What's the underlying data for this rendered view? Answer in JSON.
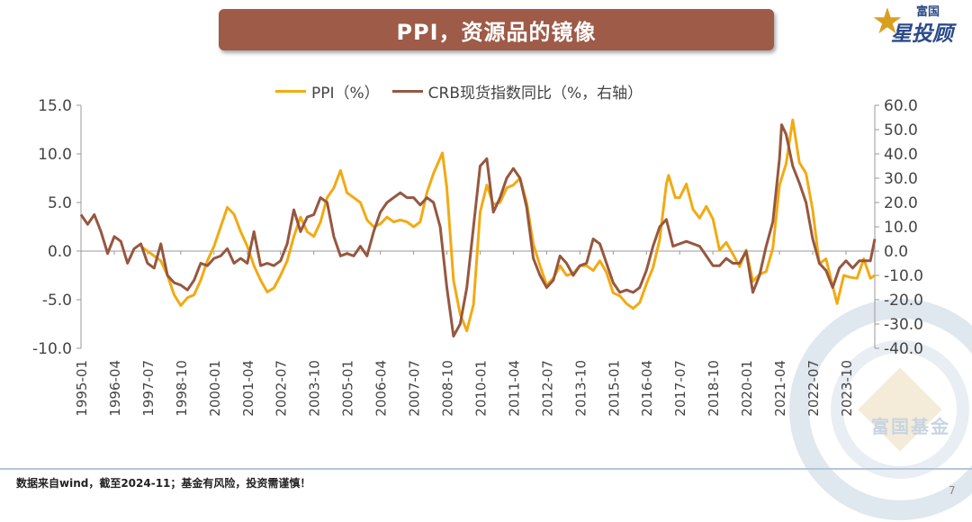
{
  "header": {
    "title": "PPI，资源品的镜像",
    "logo_small": "富国",
    "logo_big": "星投顾"
  },
  "watermark": {
    "text": "富国基金"
  },
  "footer": {
    "note": "数据来自wind，截至2024-11；基金有风险，投资需谨慎！",
    "page_number": "7"
  },
  "colors": {
    "banner": "#9e5b48",
    "ppi": "#f2aa12",
    "crb": "#96573f",
    "footer_rule": "#b6c6d9"
  },
  "chart_data": {
    "type": "line",
    "title": "",
    "legend_position": "top",
    "grid": false,
    "x_range": [
      "1995-01",
      "2024-11"
    ],
    "x_ticks": [
      "1995-01",
      "1996-04",
      "1997-07",
      "1998-10",
      "2000-01",
      "2001-04",
      "2002-07",
      "2003-10",
      "2005-01",
      "2006-04",
      "2007-07",
      "2008-10",
      "2010-01",
      "2011-04",
      "2012-07",
      "2013-10",
      "2015-01",
      "2016-04",
      "2017-07",
      "2018-10",
      "2020-01",
      "2021-04",
      "2022-07",
      "2023-10"
    ],
    "y_left": {
      "ticks": [
        "15.0",
        "10.0",
        "5.0",
        "0.0",
        "-5.0",
        "-10.0"
      ],
      "range": [
        -10,
        15
      ]
    },
    "y_right": {
      "ticks": [
        "60.0",
        "50.0",
        "40.0",
        "30.0",
        "20.0",
        "10.0",
        "0.0",
        "-10.0",
        "-20.0",
        "-30.0",
        "-40.0"
      ],
      "range": [
        -40,
        60
      ]
    },
    "series": [
      {
        "name": "PPI（%）",
        "axis": "left",
        "points": [
          [
            "1997-04",
            0.5
          ],
          [
            "1997-10",
            -0.5
          ],
          [
            "1998-01",
            -1.0
          ],
          [
            "1998-04",
            -2.5
          ],
          [
            "1998-07",
            -4.5
          ],
          [
            "1998-10",
            -5.6
          ],
          [
            "1999-01",
            -4.8
          ],
          [
            "1999-04",
            -4.5
          ],
          [
            "1999-07",
            -3.0
          ],
          [
            "1999-10",
            -1.0
          ],
          [
            "2000-01",
            0.5
          ],
          [
            "2000-04",
            2.5
          ],
          [
            "2000-07",
            4.5
          ],
          [
            "2000-10",
            3.8
          ],
          [
            "2001-01",
            2.0
          ],
          [
            "2001-04",
            0.5
          ],
          [
            "2001-07",
            -1.5
          ],
          [
            "2001-10",
            -3.0
          ],
          [
            "2002-01",
            -4.2
          ],
          [
            "2002-04",
            -3.8
          ],
          [
            "2002-07",
            -2.5
          ],
          [
            "2002-10",
            -1.0
          ],
          [
            "2003-01",
            1.5
          ],
          [
            "2003-04",
            3.5
          ],
          [
            "2003-07",
            2.0
          ],
          [
            "2003-10",
            1.5
          ],
          [
            "2004-01",
            3.0
          ],
          [
            "2004-04",
            5.5
          ],
          [
            "2004-07",
            6.5
          ],
          [
            "2004-10",
            8.3
          ],
          [
            "2005-01",
            6.0
          ],
          [
            "2005-04",
            5.5
          ],
          [
            "2005-07",
            5.0
          ],
          [
            "2005-10",
            3.2
          ],
          [
            "2006-01",
            2.5
          ],
          [
            "2006-04",
            2.8
          ],
          [
            "2006-07",
            3.5
          ],
          [
            "2006-10",
            3.0
          ],
          [
            "2007-01",
            3.2
          ],
          [
            "2007-04",
            3.0
          ],
          [
            "2007-07",
            2.5
          ],
          [
            "2007-10",
            3.0
          ],
          [
            "2008-01",
            6.0
          ],
          [
            "2008-04",
            8.0
          ],
          [
            "2008-08",
            10.1
          ],
          [
            "2008-10",
            6.5
          ],
          [
            "2009-01",
            -3.0
          ],
          [
            "2009-04",
            -6.5
          ],
          [
            "2009-07",
            -8.2
          ],
          [
            "2009-10",
            -5.5
          ],
          [
            "2010-01",
            4.0
          ],
          [
            "2010-04",
            6.8
          ],
          [
            "2010-07",
            4.8
          ],
          [
            "2010-10",
            5.0
          ],
          [
            "2011-01",
            6.5
          ],
          [
            "2011-04",
            6.8
          ],
          [
            "2011-07",
            7.5
          ],
          [
            "2011-10",
            5.0
          ],
          [
            "2012-01",
            0.7
          ],
          [
            "2012-04",
            -1.5
          ],
          [
            "2012-07",
            -3.5
          ],
          [
            "2012-10",
            -2.8
          ],
          [
            "2013-01",
            -1.5
          ],
          [
            "2013-04",
            -2.5
          ],
          [
            "2013-07",
            -2.3
          ],
          [
            "2013-10",
            -1.5
          ],
          [
            "2014-01",
            -1.5
          ],
          [
            "2014-04",
            -2.0
          ],
          [
            "2014-07",
            -1.0
          ],
          [
            "2014-10",
            -2.2
          ],
          [
            "2015-01",
            -4.3
          ],
          [
            "2015-04",
            -4.6
          ],
          [
            "2015-07",
            -5.4
          ],
          [
            "2015-10",
            -5.9
          ],
          [
            "2016-01",
            -5.3
          ],
          [
            "2016-04",
            -3.4
          ],
          [
            "2016-07",
            -1.7
          ],
          [
            "2016-10",
            1.2
          ],
          [
            "2017-01",
            6.9
          ],
          [
            "2017-02",
            7.8
          ],
          [
            "2017-05",
            5.5
          ],
          [
            "2017-07",
            5.5
          ],
          [
            "2017-10",
            6.9
          ],
          [
            "2018-01",
            4.3
          ],
          [
            "2018-04",
            3.4
          ],
          [
            "2018-07",
            4.6
          ],
          [
            "2018-10",
            3.3
          ],
          [
            "2019-01",
            0.1
          ],
          [
            "2019-04",
            0.9
          ],
          [
            "2019-07",
            -0.3
          ],
          [
            "2019-10",
            -1.6
          ],
          [
            "2020-01",
            0.1
          ],
          [
            "2020-04",
            -3.1
          ],
          [
            "2020-07",
            -2.4
          ],
          [
            "2020-10",
            -2.1
          ],
          [
            "2021-01",
            0.3
          ],
          [
            "2021-04",
            6.8
          ],
          [
            "2021-07",
            9.0
          ],
          [
            "2021-10",
            13.5
          ],
          [
            "2022-01",
            9.1
          ],
          [
            "2022-04",
            8.0
          ],
          [
            "2022-07",
            4.2
          ],
          [
            "2022-10",
            -1.3
          ],
          [
            "2023-01",
            -0.8
          ],
          [
            "2023-04",
            -3.6
          ],
          [
            "2023-06",
            -5.4
          ],
          [
            "2023-09",
            -2.5
          ],
          [
            "2023-12",
            -2.7
          ],
          [
            "2024-03",
            -2.8
          ],
          [
            "2024-06",
            -0.8
          ],
          [
            "2024-09",
            -2.8
          ],
          [
            "2024-11",
            -2.5
          ]
        ]
      },
      {
        "name": "CRB现货指数同比（%，右轴）",
        "axis": "right",
        "points": [
          [
            "1995-01",
            15
          ],
          [
            "1995-04",
            11
          ],
          [
            "1995-07",
            15
          ],
          [
            "1995-10",
            8
          ],
          [
            "1996-01",
            -1
          ],
          [
            "1996-04",
            6
          ],
          [
            "1996-07",
            4
          ],
          [
            "1996-10",
            -5
          ],
          [
            "1997-01",
            1
          ],
          [
            "1997-04",
            3
          ],
          [
            "1997-07",
            -5
          ],
          [
            "1997-10",
            -7
          ],
          [
            "1998-01",
            3
          ],
          [
            "1998-04",
            -10
          ],
          [
            "1998-07",
            -13
          ],
          [
            "1998-10",
            -14
          ],
          [
            "1999-01",
            -16
          ],
          [
            "1999-04",
            -12
          ],
          [
            "1999-07",
            -5
          ],
          [
            "1999-10",
            -6
          ],
          [
            "2000-01",
            -3
          ],
          [
            "2000-04",
            -2
          ],
          [
            "2000-07",
            1
          ],
          [
            "2000-10",
            -5
          ],
          [
            "2001-01",
            -3
          ],
          [
            "2001-04",
            -5
          ],
          [
            "2001-07",
            8
          ],
          [
            "2001-10",
            -6
          ],
          [
            "2002-01",
            -5
          ],
          [
            "2002-04",
            -6
          ],
          [
            "2002-07",
            -4
          ],
          [
            "2002-10",
            3
          ],
          [
            "2003-01",
            17
          ],
          [
            "2003-04",
            8
          ],
          [
            "2003-07",
            14
          ],
          [
            "2003-10",
            15
          ],
          [
            "2004-01",
            22
          ],
          [
            "2004-04",
            20
          ],
          [
            "2004-07",
            6
          ],
          [
            "2004-10",
            -2
          ],
          [
            "2005-01",
            -1
          ],
          [
            "2005-04",
            -2
          ],
          [
            "2005-07",
            2
          ],
          [
            "2005-10",
            -2
          ],
          [
            "2006-01",
            8
          ],
          [
            "2006-04",
            16
          ],
          [
            "2006-07",
            20
          ],
          [
            "2006-10",
            22
          ],
          [
            "2007-01",
            24
          ],
          [
            "2007-04",
            22
          ],
          [
            "2007-07",
            22
          ],
          [
            "2007-10",
            19
          ],
          [
            "2008-01",
            22
          ],
          [
            "2008-04",
            20
          ],
          [
            "2008-07",
            10
          ],
          [
            "2008-10",
            -15
          ],
          [
            "2009-01",
            -35
          ],
          [
            "2009-04",
            -30
          ],
          [
            "2009-07",
            -15
          ],
          [
            "2009-10",
            10
          ],
          [
            "2010-01",
            35
          ],
          [
            "2010-04",
            38
          ],
          [
            "2010-07",
            16
          ],
          [
            "2010-10",
            22
          ],
          [
            "2011-01",
            30
          ],
          [
            "2011-04",
            34
          ],
          [
            "2011-07",
            30
          ],
          [
            "2011-10",
            18
          ],
          [
            "2012-01",
            -3
          ],
          [
            "2012-04",
            -10
          ],
          [
            "2012-07",
            -15
          ],
          [
            "2012-10",
            -12
          ],
          [
            "2013-01",
            -2
          ],
          [
            "2013-04",
            -5
          ],
          [
            "2013-07",
            -10
          ],
          [
            "2013-10",
            -6
          ],
          [
            "2014-01",
            -5
          ],
          [
            "2014-04",
            5
          ],
          [
            "2014-07",
            3
          ],
          [
            "2014-10",
            -5
          ],
          [
            "2015-01",
            -13
          ],
          [
            "2015-04",
            -17
          ],
          [
            "2015-07",
            -16
          ],
          [
            "2015-10",
            -17
          ],
          [
            "2016-01",
            -15
          ],
          [
            "2016-04",
            -8
          ],
          [
            "2016-07",
            2
          ],
          [
            "2016-10",
            10
          ],
          [
            "2017-01",
            13
          ],
          [
            "2017-04",
            2
          ],
          [
            "2017-07",
            3
          ],
          [
            "2017-10",
            4
          ],
          [
            "2018-01",
            3
          ],
          [
            "2018-04",
            2
          ],
          [
            "2018-07",
            -2
          ],
          [
            "2018-10",
            -6
          ],
          [
            "2019-01",
            -6
          ],
          [
            "2019-04",
            -3
          ],
          [
            "2019-07",
            -5
          ],
          [
            "2019-10",
            -5
          ],
          [
            "2020-01",
            0
          ],
          [
            "2020-04",
            -17
          ],
          [
            "2020-07",
            -10
          ],
          [
            "2020-10",
            2
          ],
          [
            "2021-01",
            12
          ],
          [
            "2021-04",
            38
          ],
          [
            "2021-05",
            52
          ],
          [
            "2021-07",
            48
          ],
          [
            "2021-10",
            35
          ],
          [
            "2022-01",
            28
          ],
          [
            "2022-04",
            20
          ],
          [
            "2022-07",
            5
          ],
          [
            "2022-10",
            -5
          ],
          [
            "2023-01",
            -8
          ],
          [
            "2023-04",
            -15
          ],
          [
            "2023-07",
            -7
          ],
          [
            "2023-10",
            -4
          ],
          [
            "2024-01",
            -7
          ],
          [
            "2024-04",
            -4
          ],
          [
            "2024-07",
            -4
          ],
          [
            "2024-09",
            -4
          ],
          [
            "2024-11",
            5
          ]
        ]
      }
    ]
  }
}
